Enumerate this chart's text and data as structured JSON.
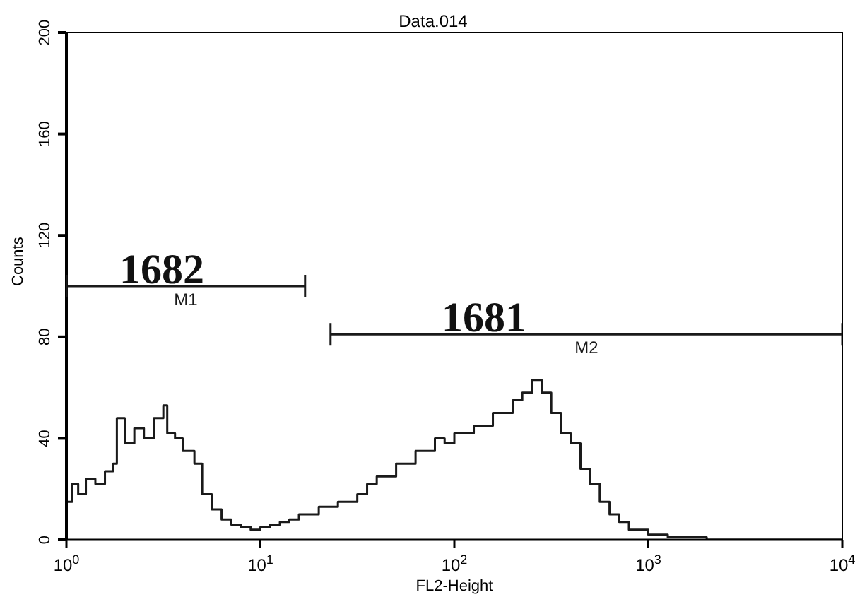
{
  "chart_data": {
    "type": "step",
    "title": "Data.014",
    "xlabel": "FL2-Height",
    "ylabel": "Counts",
    "log": "x",
    "xlim": [
      1,
      10000
    ],
    "xticks": [
      {
        "value": 1,
        "label": "10$^{0}$"
      },
      {
        "value": 10,
        "label": "10$^{1}$"
      },
      {
        "value": 100,
        "label": "10$^{2}$"
      },
      {
        "value": 1000,
        "label": "10$^{3}$"
      },
      {
        "value": 10000,
        "label": "10$^{4}$"
      }
    ],
    "ylim": [
      0,
      200
    ],
    "yticks": [
      0,
      40,
      80,
      120,
      160,
      200
    ],
    "grid": false,
    "marker": "none",
    "line_style": "solid",
    "series": [
      {
        "color": "#1a1a1a",
        "x": [
          1,
          1.07,
          1.15,
          1.26,
          1.41,
          1.58,
          1.74,
          1.82,
          2.0,
          2.24,
          2.51,
          2.82,
          3.16,
          3.31,
          3.63,
          3.98,
          4.57,
          5.01,
          5.62,
          6.31,
          7.08,
          7.94,
          8.91,
          10,
          11.2,
          12.6,
          14.1,
          15.8,
          20,
          25.1,
          31.6,
          35.5,
          39.8,
          50.1,
          63.1,
          79.4,
          89.1,
          100,
          126,
          158,
          200,
          224,
          251,
          282,
          316,
          355,
          398,
          447,
          501,
          562,
          631,
          708,
          794,
          1000,
          1260,
          1580,
          2000,
          3160,
          10000
        ],
        "values": [
          15,
          22,
          18,
          24,
          22,
          27,
          30,
          48,
          38,
          44,
          40,
          48,
          53,
          42,
          40,
          35,
          30,
          18,
          12,
          8,
          6,
          5,
          4,
          5,
          6,
          7,
          8,
          10,
          13,
          15,
          18,
          22,
          25,
          30,
          35,
          40,
          38,
          42,
          45,
          50,
          55,
          58,
          63,
          58,
          50,
          42,
          38,
          28,
          22,
          15,
          10,
          7,
          4,
          2,
          1,
          1,
          0,
          0,
          0
        ]
      },
      {
        "type": "line",
        "name": "M1",
        "color": "#1a1a1a",
        "x": [
          1,
          17
        ],
        "values": [
          100,
          100
        ]
      },
      {
        "type": "line",
        "name": "M2",
        "color": "#1a1a1a",
        "x": [
          23,
          10000
        ],
        "values": [
          81,
          81
        ]
      }
    ],
    "annotations": [
      "1682",
      "1681"
    ]
  }
}
